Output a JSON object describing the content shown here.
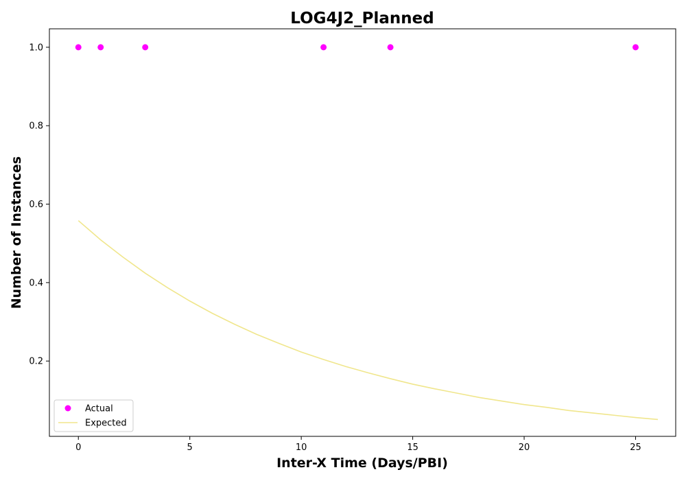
{
  "chart_data": {
    "type": "scatter",
    "title": "LOG4J2_Planned",
    "xlabel": "Inter-X Time (Days/PBI)",
    "ylabel": "Number of Instances",
    "xlim": [
      -1.3,
      26.8
    ],
    "ylim": [
      0.008,
      1.047
    ],
    "x_ticks": [
      0,
      5,
      10,
      15,
      20,
      25
    ],
    "x_tick_labels": [
      "0",
      "5",
      "10",
      "15",
      "20",
      "25"
    ],
    "y_ticks": [
      0.2,
      0.4,
      0.6,
      0.8,
      1.0
    ],
    "y_tick_labels": [
      "0.2",
      "0.4",
      "0.6",
      "0.8",
      "1.0"
    ],
    "grid": false,
    "legend_position": "lower-left",
    "series": [
      {
        "name": "Actual",
        "kind": "scatter",
        "color": "#ff00ff",
        "x": [
          0,
          1,
          3,
          11,
          14,
          25
        ],
        "y": [
          1.0,
          1.0,
          1.0,
          1.0,
          1.0,
          1.0
        ]
      },
      {
        "name": "Expected",
        "kind": "line",
        "color": "#f0e68c",
        "x": [
          0,
          1,
          2,
          3,
          4,
          5,
          6,
          7,
          8,
          9,
          10,
          11,
          12,
          13,
          14,
          15,
          16,
          17,
          18,
          19,
          20,
          21,
          22,
          23,
          24,
          25,
          26
        ],
        "y": [
          0.558,
          0.509,
          0.465,
          0.424,
          0.387,
          0.353,
          0.322,
          0.294,
          0.268,
          0.245,
          0.223,
          0.204,
          0.186,
          0.17,
          0.155,
          0.141,
          0.129,
          0.118,
          0.107,
          0.098,
          0.089,
          0.082,
          0.074,
          0.068,
          0.062,
          0.056,
          0.051
        ]
      }
    ]
  }
}
